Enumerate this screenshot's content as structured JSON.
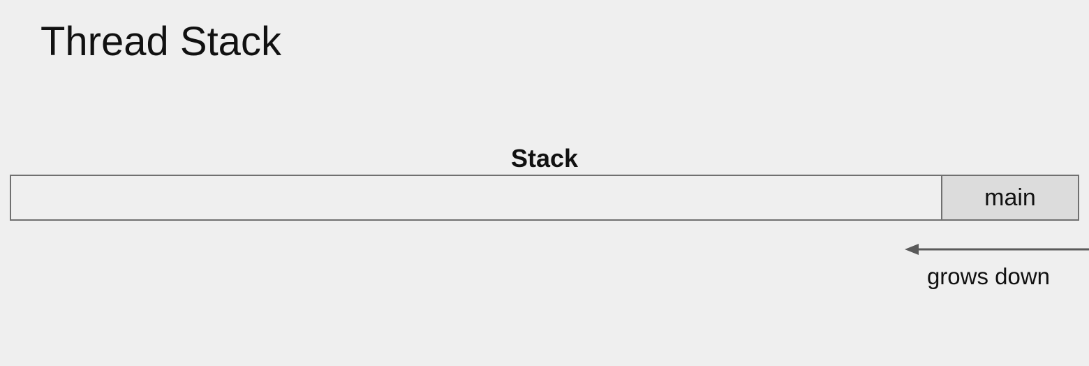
{
  "slide": {
    "title": "Thread Stack"
  },
  "stack": {
    "label": "Stack",
    "frames": [
      {
        "label": "main"
      }
    ]
  },
  "growth": {
    "direction": "left",
    "label": "grows down"
  },
  "colors": {
    "background": "#efefef",
    "frame_fill": "#dcdcdc",
    "border": "#707070",
    "arrow": "#5a5a5a",
    "text": "#111111"
  }
}
